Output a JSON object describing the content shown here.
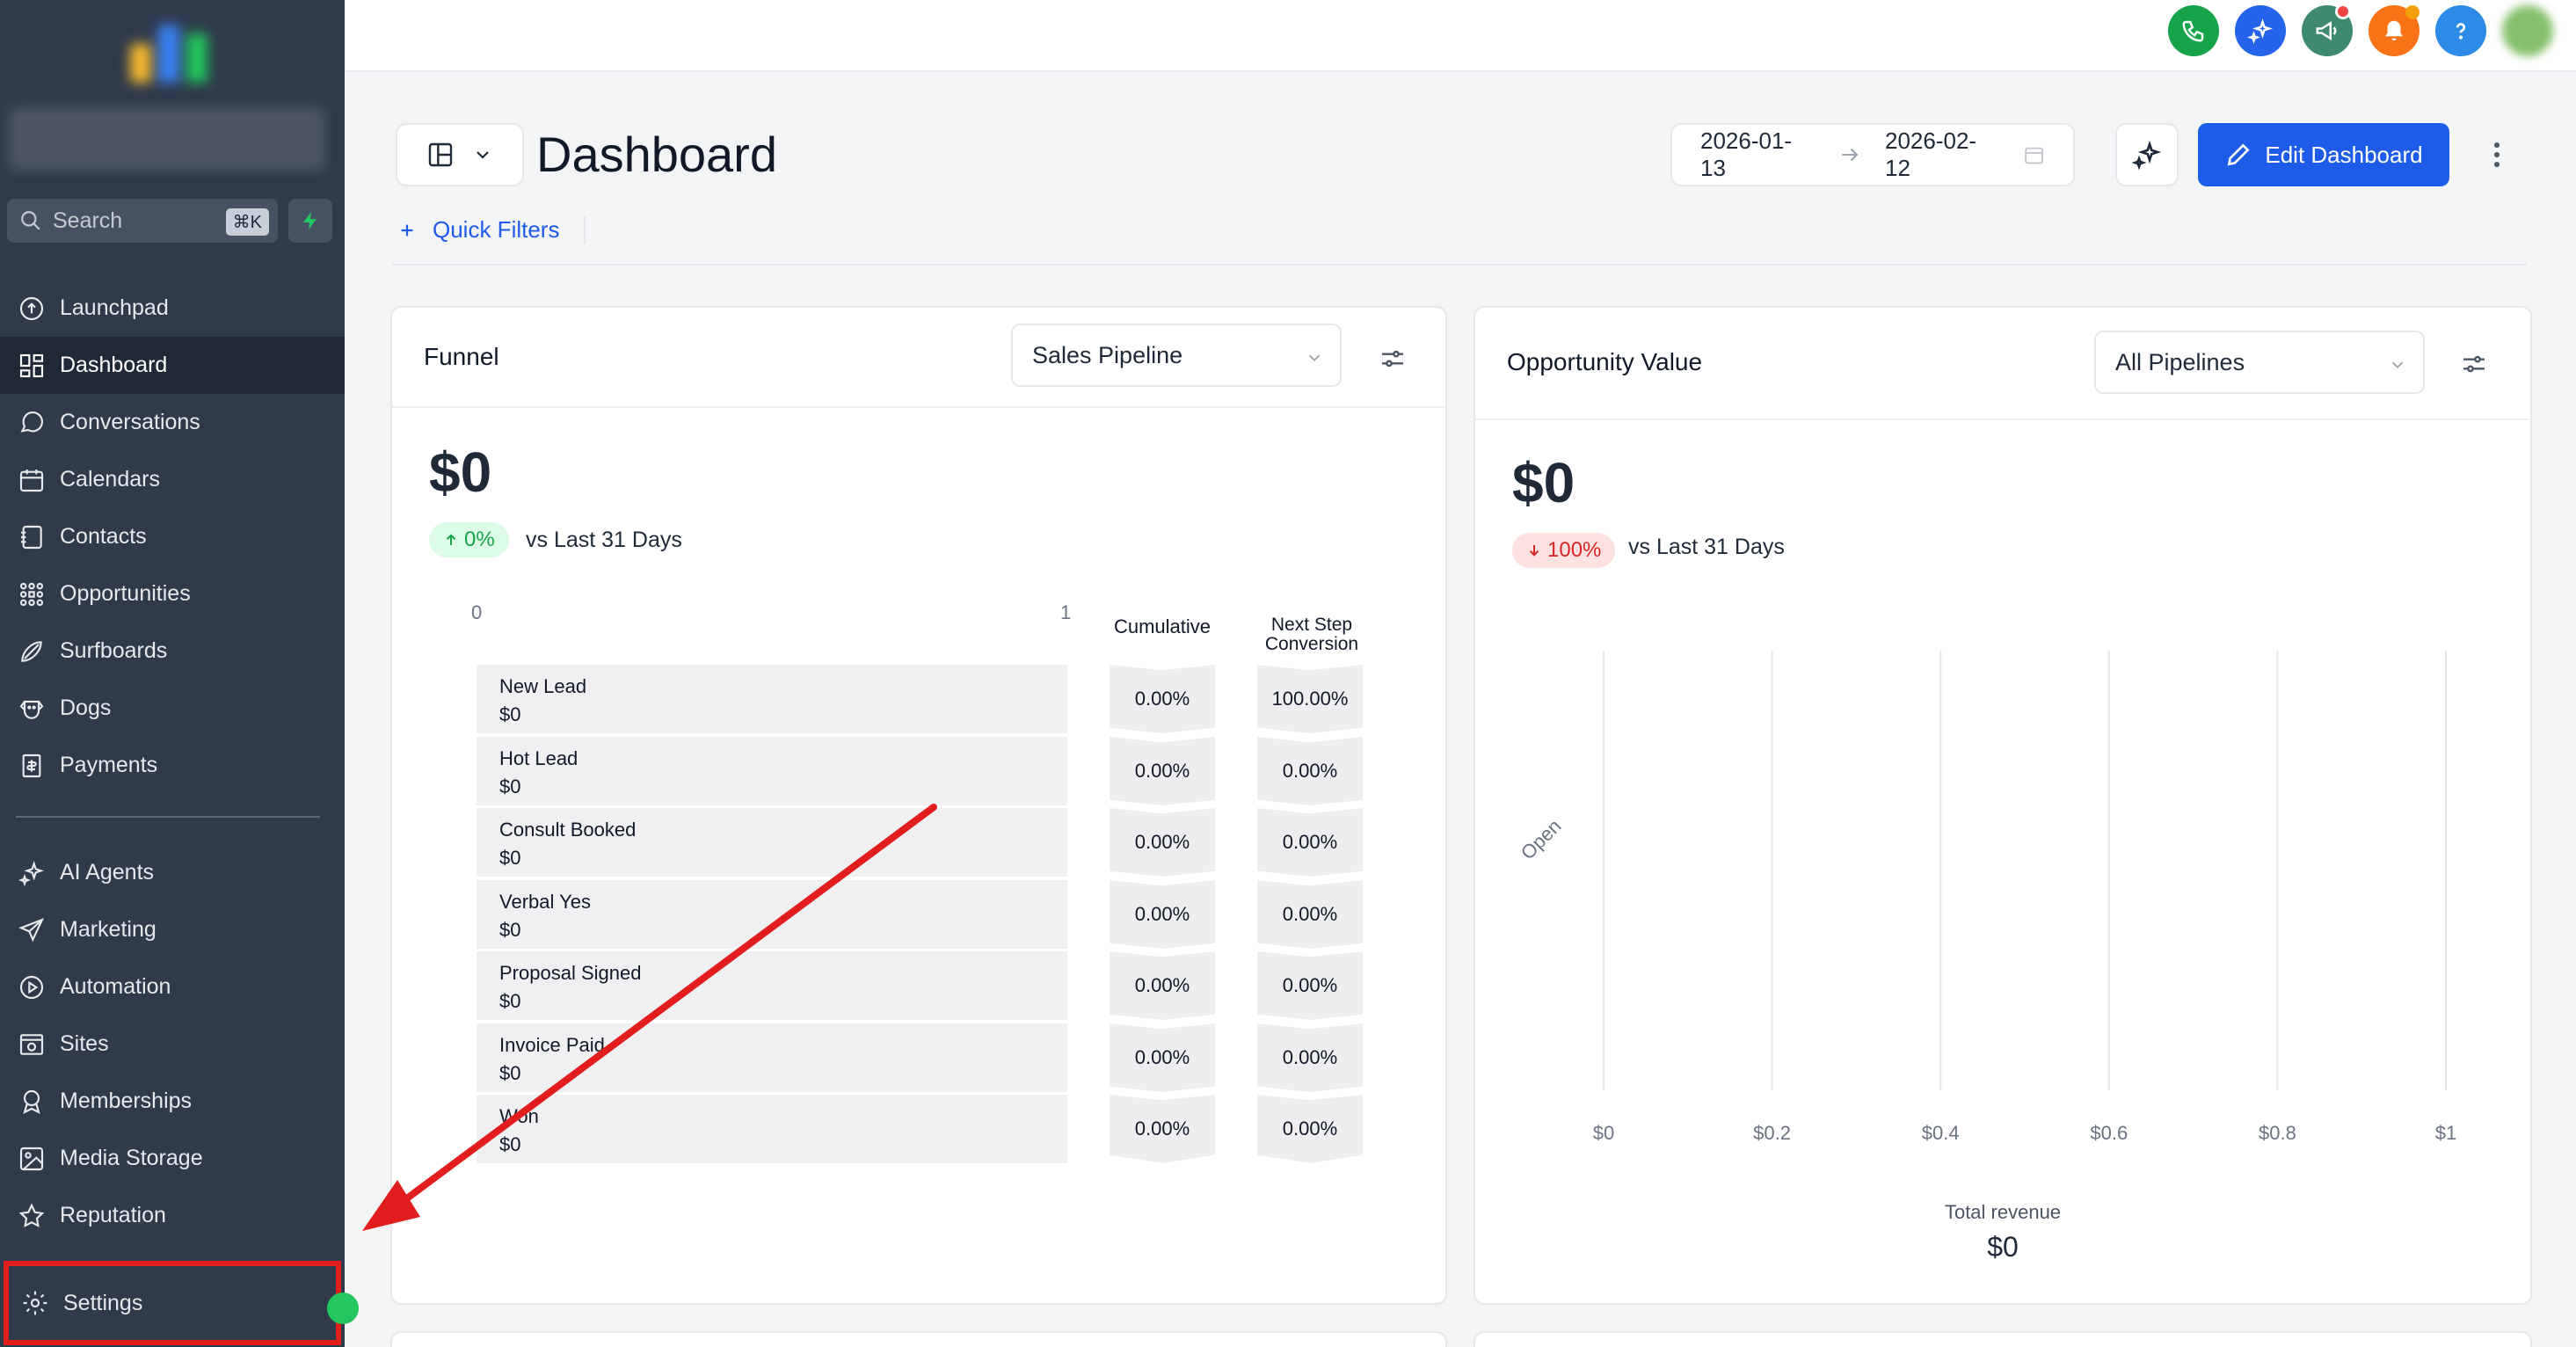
{
  "sidebar": {
    "search_label": "Search",
    "search_shortcut": "⌘K",
    "items": [
      {
        "label": "Launchpad",
        "icon": "launchpad-icon"
      },
      {
        "label": "Dashboard",
        "icon": "dashboard-icon"
      },
      {
        "label": "Conversations",
        "icon": "chat-icon"
      },
      {
        "label": "Calendars",
        "icon": "calendar-icon"
      },
      {
        "label": "Contacts",
        "icon": "contacts-icon"
      },
      {
        "label": "Opportunities",
        "icon": "opportunities-icon"
      },
      {
        "label": "Surfboards",
        "icon": "surfboard-icon"
      },
      {
        "label": "Dogs",
        "icon": "dog-icon"
      },
      {
        "label": "Payments",
        "icon": "payments-icon"
      }
    ],
    "items2": [
      {
        "label": "AI Agents",
        "icon": "sparkle-icon"
      },
      {
        "label": "Marketing",
        "icon": "send-icon"
      },
      {
        "label": "Automation",
        "icon": "automation-icon"
      },
      {
        "label": "Sites",
        "icon": "sites-icon"
      },
      {
        "label": "Memberships",
        "icon": "membership-icon"
      },
      {
        "label": "Media Storage",
        "icon": "image-icon"
      },
      {
        "label": "Reputation",
        "icon": "star-icon"
      }
    ],
    "settings_label": "Settings",
    "active": "Dashboard"
  },
  "header": {
    "title": "Dashboard",
    "date_start": "2026-01-13",
    "date_end": "2026-02-12",
    "edit_label": "Edit Dashboard",
    "quick_filters_label": "Quick Filters"
  },
  "funnel": {
    "title": "Funnel",
    "pipeline": "Sales Pipeline",
    "total": "$0",
    "change": "0%",
    "change_direction": "up",
    "vs_label": "vs Last 31 Days",
    "axis_min": "0",
    "axis_max": "1",
    "col_cumulative": "Cumulative",
    "col_next_line1": "Next Step",
    "col_next_line2": "Conversion",
    "stages": [
      {
        "name": "New Lead",
        "value": "$0",
        "cumulative": "0.00%",
        "next": "100.00%"
      },
      {
        "name": "Hot Lead",
        "value": "$0",
        "cumulative": "0.00%",
        "next": "0.00%"
      },
      {
        "name": "Consult Booked",
        "value": "$0",
        "cumulative": "0.00%",
        "next": "0.00%"
      },
      {
        "name": "Verbal Yes",
        "value": "$0",
        "cumulative": "0.00%",
        "next": "0.00%"
      },
      {
        "name": "Proposal Signed",
        "value": "$0",
        "cumulative": "0.00%",
        "next": "0.00%"
      },
      {
        "name": "Invoice Paid",
        "value": "$0",
        "cumulative": "0.00%",
        "next": "0.00%"
      },
      {
        "name": "Won",
        "value": "$0",
        "cumulative": "0.00%",
        "next": "0.00%"
      }
    ]
  },
  "opportunity": {
    "title": "Opportunity Value",
    "pipeline": "All Pipelines",
    "total": "$0",
    "change": "100%",
    "change_direction": "down",
    "vs_label": "vs Last 31 Days",
    "footer_label": "Total revenue",
    "footer_value": "$0"
  },
  "chart_data": {
    "type": "bar",
    "categories": [
      "Open"
    ],
    "values": [
      0
    ],
    "xlabel": "",
    "ylabel": "",
    "x_ticks": [
      "$0",
      "$0.2",
      "$0.4",
      "$0.6",
      "$0.8",
      "$1"
    ],
    "xlim": [
      0,
      1
    ],
    "grid": true,
    "orientation": "horizontal"
  },
  "colors": {
    "accent": "#1d5be8",
    "sidebar": "#2f3a4b",
    "positive": "#16a34a",
    "negative": "#dc2626"
  }
}
